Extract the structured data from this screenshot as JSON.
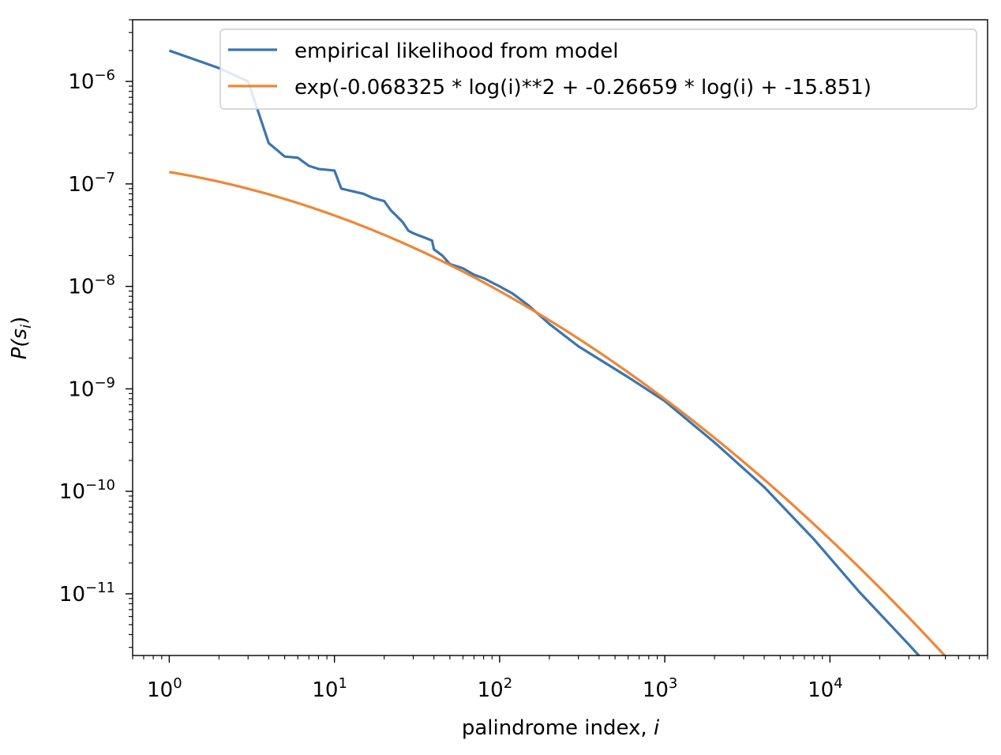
{
  "chart_data": {
    "type": "line",
    "xscale": "log",
    "yscale": "log",
    "xlim": [
      0.6,
      90000
    ],
    "ylim": [
      2.5e-12,
      4e-06
    ],
    "xlabel": "palindrome index, ",
    "xlabel_var": "i",
    "ylabel_main": "P(s",
    "ylabel_sub": "i",
    "ylabel_close": ")",
    "x_tick_labels": [
      {
        "base": "10",
        "exp": "0",
        "value": 1
      },
      {
        "base": "10",
        "exp": "1",
        "value": 10
      },
      {
        "base": "10",
        "exp": "2",
        "value": 100
      },
      {
        "base": "10",
        "exp": "3",
        "value": 1000
      },
      {
        "base": "10",
        "exp": "4",
        "value": 10000
      }
    ],
    "y_tick_labels": [
      {
        "base": "10",
        "exp": "−6",
        "value": 1e-06
      },
      {
        "base": "10",
        "exp": "−7",
        "value": 1e-07
      },
      {
        "base": "10",
        "exp": "−8",
        "value": 1e-08
      },
      {
        "base": "10",
        "exp": "−9",
        "value": 1e-09
      },
      {
        "base": "10",
        "exp": "−10",
        "value": 1e-10
      },
      {
        "base": "10",
        "exp": "−11",
        "value": 1e-11
      }
    ],
    "legend_position": "top-right",
    "grid": false,
    "series": [
      {
        "name": "empirical likelihood from model",
        "color": "#3a75b0",
        "x": [
          1,
          2,
          3,
          4,
          5,
          6,
          7,
          8,
          10,
          11,
          12,
          15,
          17,
          20,
          22,
          24,
          26,
          28,
          30,
          35,
          39,
          40,
          45,
          50,
          60,
          70,
          80,
          100,
          120,
          150,
          200,
          300,
          400,
          600,
          1000,
          2000,
          4000,
          8000,
          15000,
          30000,
          50000
        ],
        "y": [
          2e-06,
          1.35e-06,
          1e-06,
          2.5e-07,
          1.85e-07,
          1.8e-07,
          1.5e-07,
          1.4e-07,
          1.35e-07,
          9e-08,
          8.7e-08,
          8e-08,
          7.3e-08,
          6.8e-08,
          5.5e-08,
          4.8e-08,
          4.2e-08,
          3.5e-08,
          3.3e-08,
          3e-08,
          2.8e-08,
          2.3e-08,
          2e-08,
          1.65e-08,
          1.5e-08,
          1.3e-08,
          1.2e-08,
          1e-08,
          8.5e-09,
          6.5e-09,
          4.3e-09,
          2.6e-09,
          1.95e-09,
          1.3e-09,
          7.6e-10,
          3e-10,
          1.1e-10,
          3.4e-11,
          1.05e-11,
          3.2e-12,
          1.3e-12
        ]
      },
      {
        "name": "exp(-0.068325 * log(i)**2 + -0.26659 * log(i) + -15.851)",
        "color": "#ef8636",
        "function": {
          "a": -0.068325,
          "b": -0.26659,
          "c": -15.851,
          "x_from": 1,
          "x_to": 50000
        }
      }
    ]
  }
}
